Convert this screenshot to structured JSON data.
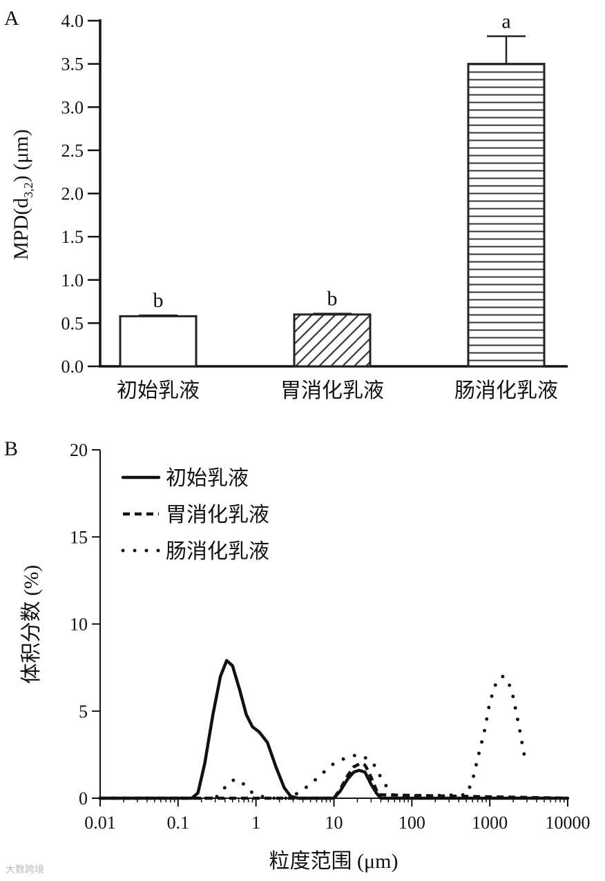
{
  "chart_data": [
    {
      "panel": "A",
      "type": "bar",
      "ylabel_main": "MPD(d",
      "ylabel_sub": "3,2",
      "ylabel_unit": ") (μm)",
      "ylim": [
        0,
        4.0
      ],
      "yticks": [
        "0.0",
        "0.5",
        "1.0",
        "1.5",
        "2.0",
        "2.5",
        "3.0",
        "3.5",
        "4.0"
      ],
      "categories": [
        "初始乳液",
        "胃消化乳液",
        "肠消化乳液"
      ],
      "values": [
        0.58,
        0.6,
        3.5
      ],
      "errors": [
        0.01,
        0.01,
        0.32
      ],
      "significance": [
        "b",
        "b",
        "a"
      ],
      "fills": [
        "plain",
        "diagonal-hatch",
        "horizontal-hatch"
      ]
    },
    {
      "panel": "B",
      "type": "line",
      "xscale": "log",
      "xlabel": "粒度范围 (μm)",
      "ylabel": "体积分数 (%)",
      "xlim": [
        0.01,
        10000
      ],
      "ylim": [
        0,
        20
      ],
      "xticks": [
        "0.01",
        "0.1",
        "1",
        "10",
        "100",
        "1000",
        "10000"
      ],
      "yticks": [
        "0",
        "5",
        "10",
        "15",
        "20"
      ],
      "legend_position": "top-left",
      "series": [
        {
          "name": "初始乳液",
          "style": "solid",
          "x": [
            0.01,
            0.15,
            0.18,
            0.22,
            0.28,
            0.35,
            0.42,
            0.5,
            0.62,
            0.75,
            0.9,
            1.1,
            1.4,
            1.8,
            2.3,
            2.8,
            3.5,
            4,
            10,
            12,
            15,
            18,
            21,
            25,
            30,
            35,
            40,
            10000
          ],
          "y": [
            0,
            0,
            0.3,
            2.0,
            4.8,
            7.0,
            7.9,
            7.6,
            6.2,
            4.8,
            4.1,
            3.8,
            3.2,
            1.8,
            0.6,
            0.1,
            0,
            0,
            0,
            0.4,
            1.1,
            1.5,
            1.6,
            1.5,
            0.8,
            0.3,
            0,
            0
          ]
        },
        {
          "name": "胃消化乳液",
          "style": "dashed",
          "x": [
            0.01,
            10,
            12,
            15,
            18,
            22,
            25,
            28,
            32,
            37,
            10000
          ],
          "y": [
            0,
            0,
            0.5,
            1.3,
            1.8,
            2.0,
            1.9,
            1.5,
            0.9,
            0.2,
            0
          ]
        },
        {
          "name": "肠消化乳液",
          "style": "dotted",
          "x": [
            0.01,
            0.3,
            0.38,
            0.45,
            0.55,
            0.7,
            0.9,
            1.2,
            1.6,
            2.5,
            3.5,
            5,
            7,
            10,
            14,
            20,
            26,
            32,
            40,
            50,
            60,
            500,
            600,
            700,
            850,
            1000,
            1200,
            1450,
            1700,
            2000,
            2400,
            2900
          ],
          "y": [
            0,
            0,
            0.5,
            0.9,
            1.1,
            0.8,
            0.3,
            0.1,
            0,
            0,
            0.3,
            0.8,
            1.4,
            2.0,
            2.3,
            2.5,
            2.3,
            2.0,
            1.2,
            0.5,
            0.1,
            0.2,
            1.0,
            2.3,
            3.8,
            5.5,
            6.6,
            7.0,
            6.8,
            5.8,
            4.0,
            2.0
          ]
        }
      ]
    }
  ]
}
